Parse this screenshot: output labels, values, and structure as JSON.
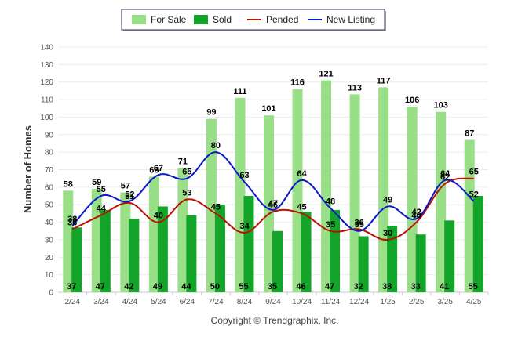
{
  "chart_data": {
    "type": "bar",
    "categories": [
      "2/24",
      "3/24",
      "4/24",
      "5/24",
      "6/24",
      "7/24",
      "8/24",
      "9/24",
      "10/24",
      "11/24",
      "12/24",
      "1/25",
      "2/25",
      "3/25",
      "4/25"
    ],
    "series": [
      {
        "name": "For Sale",
        "kind": "bar",
        "color": "#99df88",
        "values": [
          58,
          59,
          57,
          66,
          71,
          99,
          111,
          101,
          116,
          121,
          113,
          117,
          106,
          103,
          87
        ]
      },
      {
        "name": "Sold",
        "kind": "bar",
        "color": "#12a52a",
        "values": [
          37,
          47,
          42,
          49,
          44,
          50,
          55,
          35,
          46,
          47,
          32,
          38,
          33,
          41,
          55
        ]
      },
      {
        "name": "Pended",
        "kind": "line",
        "color": "#bb1100",
        "values": [
          36,
          44,
          51,
          40,
          53,
          45,
          34,
          46,
          45,
          35,
          36,
          30,
          40,
          62,
          65
        ]
      },
      {
        "name": "New Listing",
        "kind": "line",
        "color": "#0a18cc",
        "values": [
          38,
          55,
          52,
          67,
          65,
          80,
          63,
          47,
          64,
          48,
          35,
          49,
          42,
          64,
          52
        ]
      }
    ],
    "ylabel": "Number of Homes",
    "xlabel": "",
    "ylim": [
      0,
      140
    ],
    "yticks": [
      0,
      10,
      20,
      30,
      40,
      50,
      60,
      70,
      80,
      90,
      100,
      110,
      120,
      130,
      140
    ],
    "grid": true,
    "legend_position": "top-center"
  },
  "copyright": "Copyright © Trendgraphix, Inc."
}
